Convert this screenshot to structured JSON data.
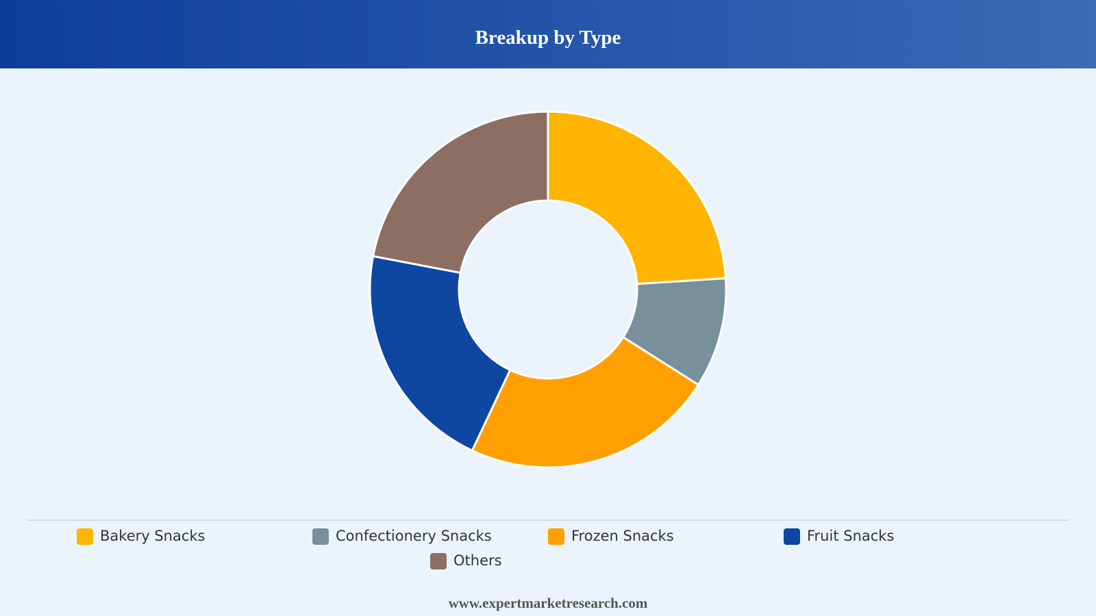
{
  "chart_data": {
    "type": "donut",
    "title": "Breakup by Type",
    "categories": [
      "Bakery Snacks",
      "Confectionery Snacks",
      "Frozen Snacks",
      "Fruit Snacks",
      "Others"
    ],
    "values": [
      24,
      10,
      23,
      21,
      22
    ],
    "colors": [
      "#FFB400",
      "#78909C",
      "#FFA000",
      "#0D47A1",
      "#8D6E63"
    ],
    "footer": "www.expertmarketresearch.com"
  }
}
